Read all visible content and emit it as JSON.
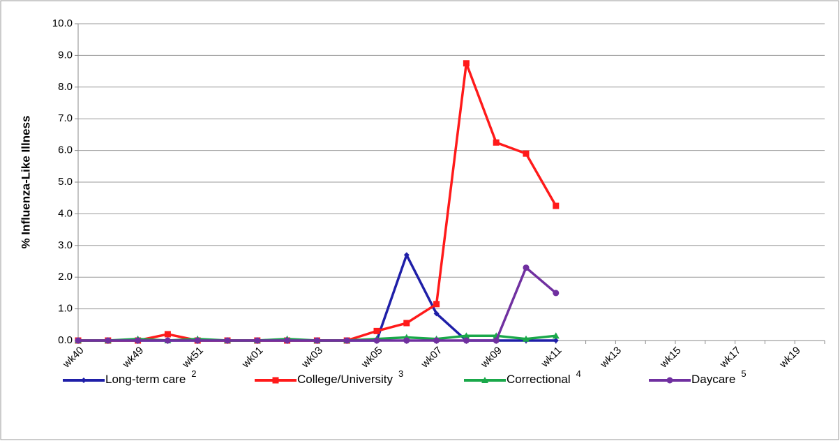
{
  "chart_data": {
    "type": "line",
    "y_axis_label": "% Influenza-Like Illness",
    "categories": [
      "wk40",
      null,
      "wk49",
      null,
      "wk51",
      null,
      "wk01",
      null,
      "wk03",
      null,
      "wk05",
      null,
      "wk07",
      null,
      "wk09",
      null,
      "wk11",
      null,
      "wk13",
      null,
      "wk15",
      null,
      "wk17",
      null,
      "wk19",
      null
    ],
    "series": [
      {
        "name": "Long-term care",
        "footnote": "2",
        "color": "#1f1fa8",
        "marker": "diamond",
        "values": [
          0,
          0,
          0,
          0,
          0,
          0,
          0,
          0,
          0,
          0,
          0,
          2.7,
          0.85,
          0,
          0,
          0,
          0,
          null,
          null,
          null,
          null,
          null,
          null,
          null,
          null,
          null
        ]
      },
      {
        "name": "College/University",
        "footnote": "3",
        "color": "#ff1a1a",
        "marker": "square",
        "values": [
          0,
          0,
          0,
          0.2,
          0,
          0,
          0,
          0,
          0,
          0,
          0.3,
          0.55,
          1.15,
          8.75,
          6.25,
          5.9,
          4.25,
          null,
          null,
          null,
          null,
          null,
          null,
          null,
          null,
          null
        ]
      },
      {
        "name": "Correctional",
        "footnote": "4",
        "color": "#1aa84a",
        "marker": "triangle",
        "values": [
          0,
          0,
          0.05,
          0,
          0.05,
          0,
          0,
          0.05,
          0,
          0,
          0.05,
          0.1,
          0.05,
          0.15,
          0.15,
          0.05,
          0.15,
          null,
          null,
          null,
          null,
          null,
          null,
          null,
          null,
          null
        ]
      },
      {
        "name": "Daycare",
        "footnote": "5",
        "color": "#7030a0",
        "marker": "circle",
        "values": [
          0,
          0,
          0,
          0,
          0,
          0,
          0,
          0,
          0,
          0,
          0,
          0,
          0,
          0,
          0,
          2.3,
          1.5,
          null,
          null,
          null,
          null,
          null,
          null,
          null,
          null,
          null
        ]
      }
    ],
    "ylim": [
      0,
      10
    ],
    "yticks": [
      {
        "value": 0,
        "label": "0.0"
      },
      {
        "value": 1,
        "label": "1.0"
      },
      {
        "value": 2,
        "label": "2.0"
      },
      {
        "value": 3,
        "label": "3.0"
      },
      {
        "value": 4,
        "label": "4.0"
      },
      {
        "value": 5,
        "label": "5.0"
      },
      {
        "value": 6,
        "label": "6.0"
      },
      {
        "value": 7,
        "label": "7.0"
      },
      {
        "value": 8,
        "label": "8.0"
      },
      {
        "value": 9,
        "label": "9.0"
      },
      {
        "value": 10,
        "label": "10.0"
      }
    ],
    "grid": true,
    "legend": "bottom"
  }
}
